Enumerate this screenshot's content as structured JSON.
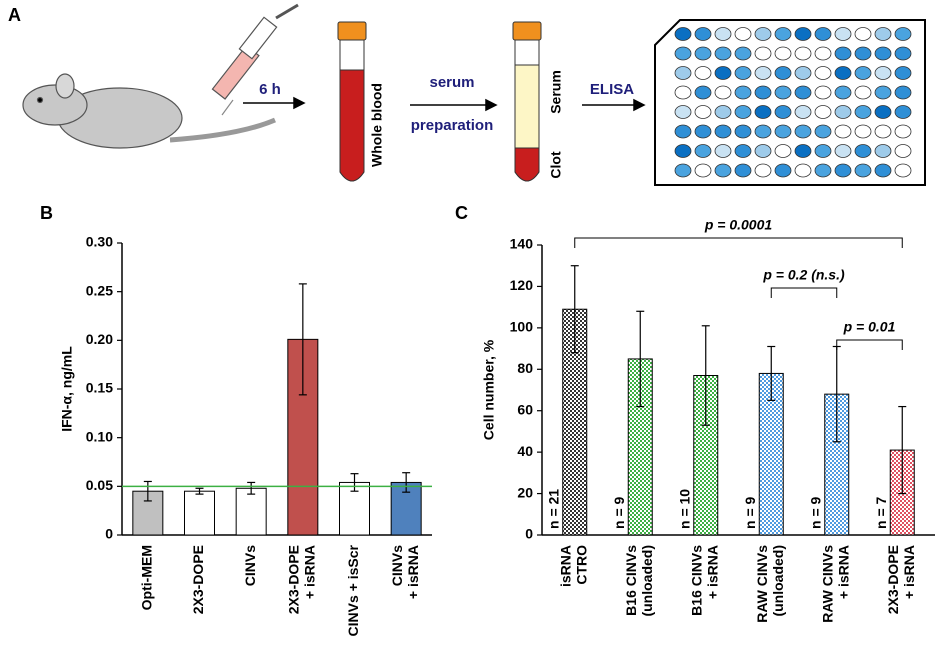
{
  "panel_labels": [
    "A",
    "B",
    "C"
  ],
  "schematic": {
    "step_1": "6 h",
    "tube_1": "Whole blood",
    "step_2": [
      "serum",
      "preparation"
    ],
    "tube_2_top": "Serum",
    "tube_2_bottom": "Clot",
    "step_3": "ELISA"
  },
  "chart_data": [
    {
      "type": "bar",
      "y_label": "IFN-α, ng/mL",
      "categories": [
        [
          "Opti-MEM"
        ],
        [
          "2X3-DOPE"
        ],
        [
          "CINVs"
        ],
        [
          "2X3-DOPE",
          "+ isRNA"
        ],
        [
          "CINVs + isScr"
        ],
        [
          "CINVs",
          "+ isRNA"
        ]
      ],
      "values": [
        0.045,
        0.045,
        0.048,
        0.201,
        0.054,
        0.054
      ],
      "errors": [
        0.01,
        0.003,
        0.006,
        0.057,
        0.009,
        0.01
      ],
      "colors": [
        "#c0c0c0",
        "#ffffff",
        "#ffffff",
        "#c0504d",
        "#ffffff",
        "#4f81bd"
      ],
      "ylim": [
        0,
        0.3
      ],
      "yticks": [
        0,
        0.05,
        {
          "value": 0.1,
          "label": "0.10"
        },
        0.15,
        {
          "value": 0.2,
          "label": "0.20"
        },
        0.25,
        {
          "value": 0.3,
          "label": "0.30"
        }
      ],
      "reference_line": {
        "value": 0.05,
        "color": "#3cb043"
      }
    },
    {
      "type": "bar",
      "y_label": "Cell number, %",
      "pattern": "checker",
      "categories": [
        [
          "isRNA",
          "CTRO"
        ],
        [
          "B16 CINVs",
          "(unloaded)"
        ],
        [
          "B16 CINVs",
          "+ isRNA"
        ],
        [
          "RAW CINVs",
          "(unloaded)"
        ],
        [
          "RAW CINVs",
          "+ isRNA"
        ],
        [
          "2X3-DOPE",
          "+ isRNA"
        ]
      ],
      "values": [
        109,
        85,
        77,
        78,
        68,
        41
      ],
      "errors": [
        21,
        23,
        24,
        13,
        23,
        21
      ],
      "n_labels": [
        "n = 21",
        "n = 9",
        "n = 10",
        "n = 9",
        "n = 9",
        "n = 7"
      ],
      "colors": [
        "#333333",
        "#3cb043",
        "#3cb043",
        "#4f9be0",
        "#4f9be0",
        "#e05060"
      ],
      "ylim": [
        0,
        140
      ],
      "yticks": [
        0,
        20,
        40,
        60,
        80,
        100,
        120,
        140
      ],
      "annotations": [
        "p = 0.0001",
        "p = 0.2 (n.s.)",
        "p = 0.01"
      ]
    }
  ]
}
